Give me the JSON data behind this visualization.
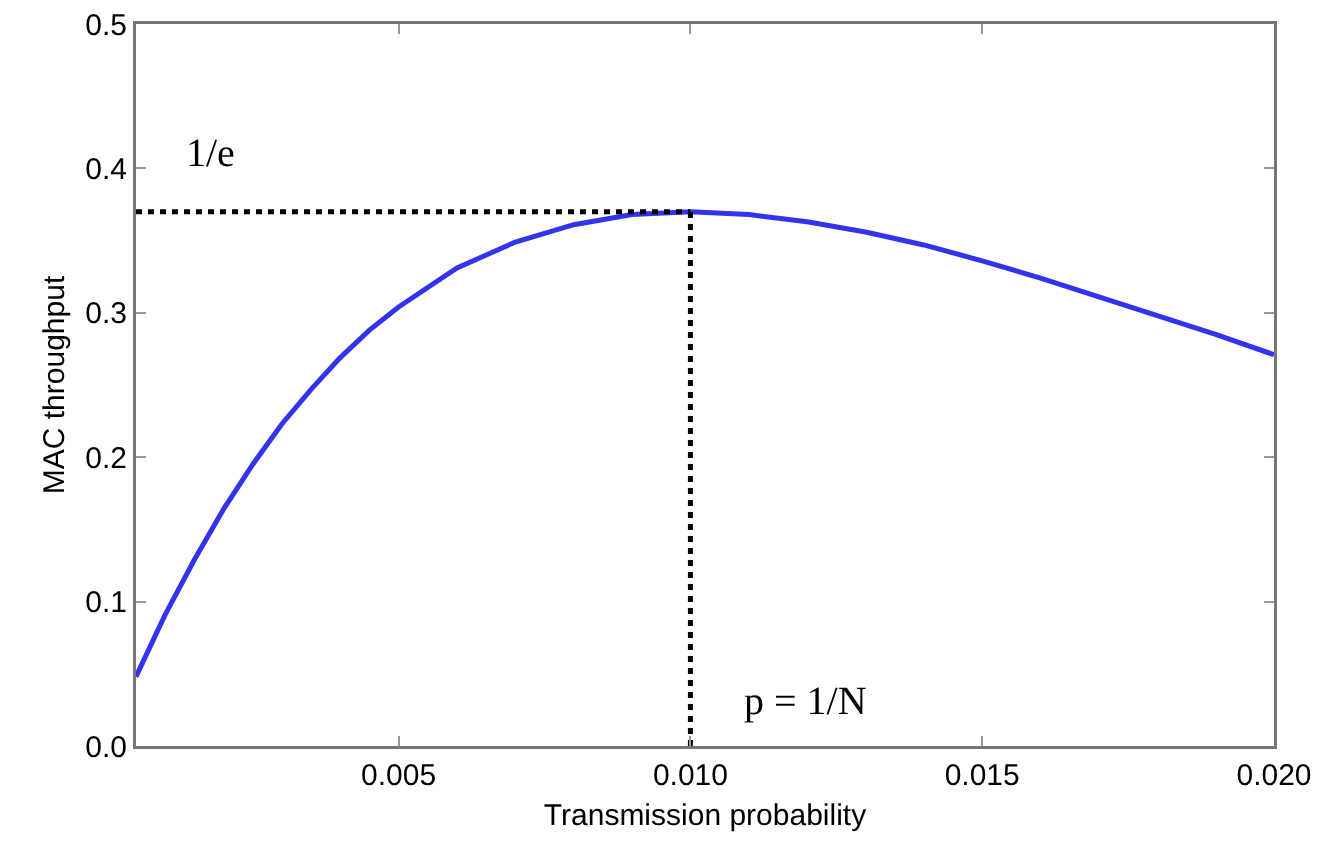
{
  "chart_data": {
    "type": "line",
    "xlabel": "Transmission probability",
    "ylabel": "MAC throughput",
    "xlim": [
      0.0005,
      0.02
    ],
    "xticks": [
      0.005,
      {
        "value": 0.01,
        "label": "0.010"
      },
      0.015,
      {
        "value": 0.02,
        "label": "0.020"
      }
    ],
    "ylim": [
      0,
      0.5
    ],
    "yticks": [
      {
        "value": 0,
        "label": "0.0"
      },
      0.1,
      0.2,
      0.3,
      0.4,
      0.5
    ],
    "grid": false,
    "marker": "none",
    "series": [
      {
        "color": "#3333ee",
        "line_style": "solid",
        "x": [
          0.0005,
          0.001,
          0.0015,
          0.002,
          0.0025,
          0.003,
          0.0035,
          0.004,
          0.0045,
          0.005,
          0.006,
          0.007,
          0.008,
          0.009,
          0.01,
          0.011,
          0.012,
          0.013,
          0.014,
          0.015,
          0.016,
          0.017,
          0.018,
          0.019,
          0.02
        ],
        "values": [
          0.048,
          0.091,
          0.129,
          0.164,
          0.195,
          0.223,
          0.247,
          0.269,
          0.288,
          0.304,
          0.331,
          0.349,
          0.361,
          0.368,
          0.37,
          0.368,
          0.363,
          0.356,
          0.347,
          0.336,
          0.324,
          0.311,
          0.298,
          0.285,
          0.271
        ]
      },
      {
        "type": "line",
        "color": "#000000",
        "line_style": "dotted",
        "x": [
          0.0005,
          0.01
        ],
        "values": [
          0.37,
          0.37
        ]
      },
      {
        "type": "line",
        "color": "#000000",
        "line_style": "dotted",
        "x": [
          0.01,
          0.01
        ],
        "values": [
          0,
          0.37
        ]
      }
    ],
    "annotations": [
      "1/e",
      "p = 1/N"
    ]
  }
}
